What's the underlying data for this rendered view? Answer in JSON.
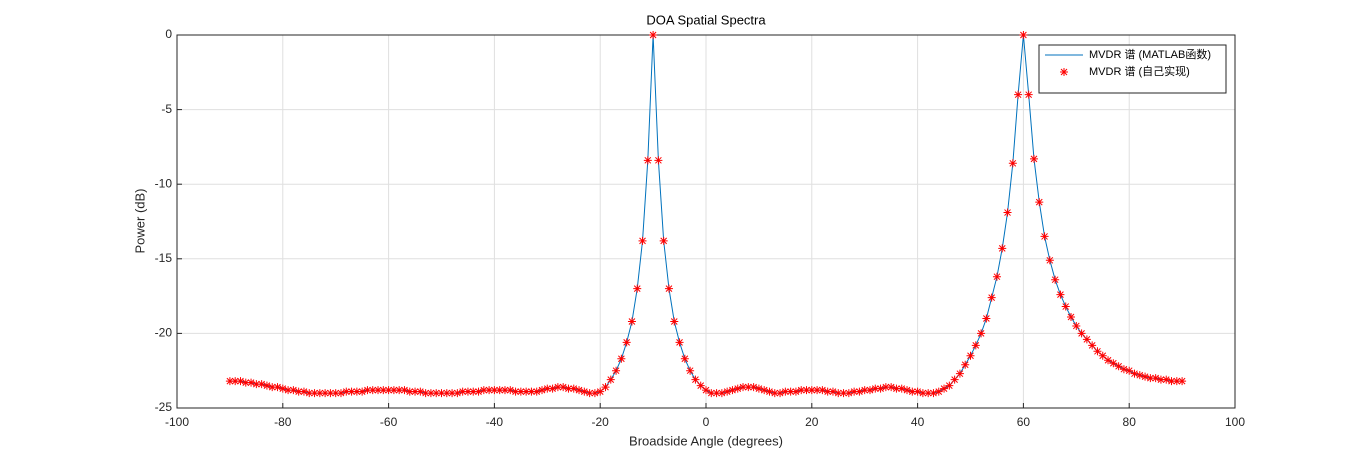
{
  "chart_data": {
    "type": "line",
    "title": "DOA Spatial Spectra",
    "xlabel": "Broadside Angle (degrees)",
    "ylabel": "Power (dB)",
    "xlim": [
      -100,
      100
    ],
    "xticks": [
      -100,
      -80,
      -60,
      -40,
      -20,
      0,
      20,
      40,
      60,
      80,
      100
    ],
    "ylim": [
      -25,
      0
    ],
    "yticks": [
      -25,
      -20,
      -15,
      -10,
      -5,
      0
    ],
    "grid": true,
    "legend": "northeast",
    "x": [
      -90,
      -89,
      -88,
      -87,
      -86,
      -85,
      -84,
      -83,
      -82,
      -81,
      -80,
      -79,
      -78,
      -77,
      -76,
      -75,
      -74,
      -73,
      -72,
      -71,
      -70,
      -69,
      -68,
      -67,
      -66,
      -65,
      -64,
      -63,
      -62,
      -61,
      -60,
      -59,
      -58,
      -57,
      -56,
      -55,
      -54,
      -53,
      -52,
      -51,
      -50,
      -49,
      -48,
      -47,
      -46,
      -45,
      -44,
      -43,
      -42,
      -41,
      -40,
      -39,
      -38,
      -37,
      -36,
      -35,
      -34,
      -33,
      -32,
      -31,
      -30,
      -29,
      -28,
      -27,
      -26,
      -25,
      -24,
      -23,
      -22,
      -21,
      -20,
      -19,
      -18,
      -17,
      -16,
      -15,
      -14,
      -13,
      -12,
      -11,
      -10,
      -9,
      -8,
      -7,
      -6,
      -5,
      -4,
      -3,
      -2,
      -1,
      0,
      1,
      2,
      3,
      4,
      5,
      6,
      7,
      8,
      9,
      10,
      11,
      12,
      13,
      14,
      15,
      16,
      17,
      18,
      19,
      20,
      21,
      22,
      23,
      24,
      25,
      26,
      27,
      28,
      29,
      30,
      31,
      32,
      33,
      34,
      35,
      36,
      37,
      38,
      39,
      40,
      41,
      42,
      43,
      44,
      45,
      46,
      47,
      48,
      49,
      50,
      51,
      52,
      53,
      54,
      55,
      56,
      57,
      58,
      59,
      60,
      61,
      62,
      63,
      64,
      65,
      66,
      67,
      68,
      69,
      70,
      71,
      72,
      73,
      74,
      75,
      76,
      77,
      78,
      79,
      80,
      81,
      82,
      83,
      84,
      85,
      86,
      87,
      88,
      89,
      90
    ],
    "series": [
      {
        "name": "MVDR 谱 (MATLAB函数)",
        "color": "#0072bd",
        "line": true,
        "values": [
          -23.2,
          -23.2,
          -23.2,
          -23.3,
          -23.3,
          -23.4,
          -23.4,
          -23.5,
          -23.6,
          -23.6,
          -23.7,
          -23.8,
          -23.8,
          -23.9,
          -23.9,
          -24.0,
          -24.0,
          -24.0,
          -24.0,
          -24.0,
          -24.0,
          -24.0,
          -23.9,
          -23.9,
          -23.9,
          -23.9,
          -23.8,
          -23.8,
          -23.8,
          -23.8,
          -23.8,
          -23.8,
          -23.8,
          -23.8,
          -23.9,
          -23.9,
          -23.9,
          -24.0,
          -24.0,
          -24.0,
          -24.0,
          -24.0,
          -24.0,
          -24.0,
          -23.9,
          -23.9,
          -23.9,
          -23.9,
          -23.8,
          -23.8,
          -23.8,
          -23.8,
          -23.8,
          -23.8,
          -23.9,
          -23.9,
          -23.9,
          -23.9,
          -23.9,
          -23.8,
          -23.7,
          -23.7,
          -23.6,
          -23.6,
          -23.7,
          -23.7,
          -23.8,
          -23.9,
          -24.0,
          -24.0,
          -23.9,
          -23.6,
          -23.1,
          -22.5,
          -21.7,
          -20.6,
          -19.2,
          -17.0,
          -13.8,
          -8.4,
          0,
          -8.4,
          -13.8,
          -17.0,
          -19.2,
          -20.6,
          -21.7,
          -22.5,
          -23.1,
          -23.5,
          -23.8,
          -24.0,
          -24.0,
          -24.0,
          -23.9,
          -23.8,
          -23.7,
          -23.6,
          -23.6,
          -23.6,
          -23.7,
          -23.8,
          -23.9,
          -24.0,
          -24.0,
          -23.9,
          -23.9,
          -23.9,
          -23.8,
          -23.8,
          -23.8,
          -23.8,
          -23.8,
          -23.9,
          -23.9,
          -24.0,
          -24.0,
          -24.0,
          -23.9,
          -23.9,
          -23.8,
          -23.8,
          -23.7,
          -23.7,
          -23.6,
          -23.6,
          -23.7,
          -23.7,
          -23.8,
          -23.9,
          -23.9,
          -24.0,
          -24.0,
          -24.0,
          -23.9,
          -23.7,
          -23.5,
          -23.1,
          -22.7,
          -22.1,
          -21.5,
          -20.8,
          -20.0,
          -19.0,
          -17.6,
          -16.2,
          -14.3,
          -11.9,
          -8.6,
          -4.0,
          0,
          -4.0,
          -8.3,
          -11.2,
          -13.5,
          -15.1,
          -16.4,
          -17.4,
          -18.2,
          -18.9,
          -19.5,
          -20.0,
          -20.4,
          -20.8,
          -21.2,
          -21.5,
          -21.8,
          -22.0,
          -22.2,
          -22.4,
          -22.5,
          -22.7,
          -22.8,
          -22.9,
          -23.0,
          -23.0,
          -23.1,
          -23.1,
          -23.2,
          -23.2,
          -23.2
        ]
      },
      {
        "name": "MVDR 谱 (自己实现)",
        "color": "#ff0000",
        "marker": "*",
        "values": [
          -23.2,
          -23.2,
          -23.2,
          -23.3,
          -23.3,
          -23.4,
          -23.4,
          -23.5,
          -23.6,
          -23.6,
          -23.7,
          -23.8,
          -23.8,
          -23.9,
          -23.9,
          -24.0,
          -24.0,
          -24.0,
          -24.0,
          -24.0,
          -24.0,
          -24.0,
          -23.9,
          -23.9,
          -23.9,
          -23.9,
          -23.8,
          -23.8,
          -23.8,
          -23.8,
          -23.8,
          -23.8,
          -23.8,
          -23.8,
          -23.9,
          -23.9,
          -23.9,
          -24.0,
          -24.0,
          -24.0,
          -24.0,
          -24.0,
          -24.0,
          -24.0,
          -23.9,
          -23.9,
          -23.9,
          -23.9,
          -23.8,
          -23.8,
          -23.8,
          -23.8,
          -23.8,
          -23.8,
          -23.9,
          -23.9,
          -23.9,
          -23.9,
          -23.9,
          -23.8,
          -23.7,
          -23.7,
          -23.6,
          -23.6,
          -23.7,
          -23.7,
          -23.8,
          -23.9,
          -24.0,
          -24.0,
          -23.9,
          -23.6,
          -23.1,
          -22.5,
          -21.7,
          -20.6,
          -19.2,
          -17.0,
          -13.8,
          -8.4,
          0,
          -8.4,
          -13.8,
          -17.0,
          -19.2,
          -20.6,
          -21.7,
          -22.5,
          -23.1,
          -23.5,
          -23.8,
          -24.0,
          -24.0,
          -24.0,
          -23.9,
          -23.8,
          -23.7,
          -23.6,
          -23.6,
          -23.6,
          -23.7,
          -23.8,
          -23.9,
          -24.0,
          -24.0,
          -23.9,
          -23.9,
          -23.9,
          -23.8,
          -23.8,
          -23.8,
          -23.8,
          -23.8,
          -23.9,
          -23.9,
          -24.0,
          -24.0,
          -24.0,
          -23.9,
          -23.9,
          -23.8,
          -23.8,
          -23.7,
          -23.7,
          -23.6,
          -23.6,
          -23.7,
          -23.7,
          -23.8,
          -23.9,
          -23.9,
          -24.0,
          -24.0,
          -24.0,
          -23.9,
          -23.7,
          -23.5,
          -23.1,
          -22.7,
          -22.1,
          -21.5,
          -20.8,
          -20.0,
          -19.0,
          -17.6,
          -16.2,
          -14.3,
          -11.9,
          -8.6,
          -4.0,
          0,
          -4.0,
          -8.3,
          -11.2,
          -13.5,
          -15.1,
          -16.4,
          -17.4,
          -18.2,
          -18.9,
          -19.5,
          -20.0,
          -20.4,
          -20.8,
          -21.2,
          -21.5,
          -21.8,
          -22.0,
          -22.2,
          -22.4,
          -22.5,
          -22.7,
          -22.8,
          -22.9,
          -23.0,
          -23.0,
          -23.1,
          -23.1,
          -23.2,
          -23.2,
          -23.2
        ]
      }
    ]
  }
}
